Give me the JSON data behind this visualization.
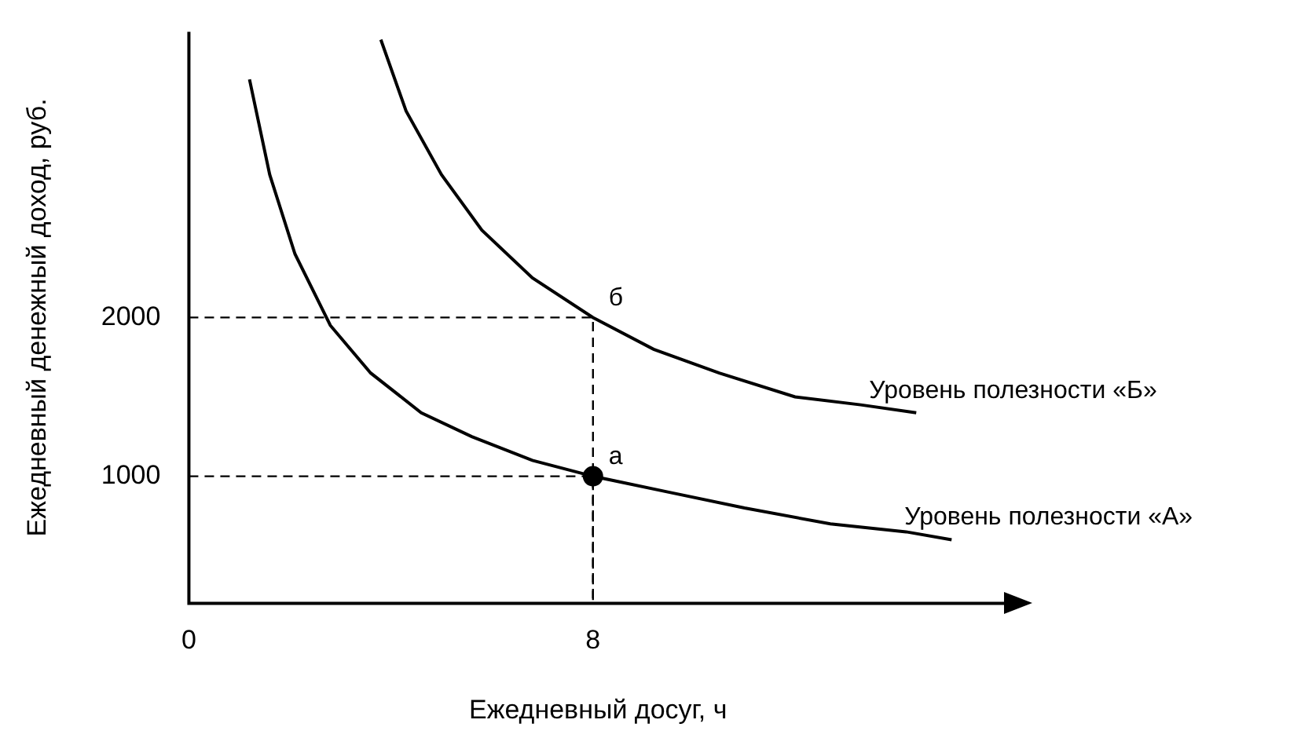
{
  "chart_data": {
    "type": "line",
    "xlabel": "Ежедневный досуг, ч",
    "ylabel": "Ежедневный денежный доход, руб.",
    "xlim": [
      0,
      16.2
    ],
    "ylim": [
      200,
      3800
    ],
    "xticks": [
      0,
      8
    ],
    "yticks": [
      1000,
      2000
    ],
    "grid": false,
    "legend": false,
    "marker": "none",
    "line_style": "solid",
    "series": [
      {
        "name": "Уровень полезности «А»",
        "color": "#000000",
        "x": [
          1.2,
          1.6,
          2.1,
          2.8,
          3.6,
          4.6,
          5.6,
          6.8,
          8,
          9.5,
          11,
          12.7,
          14.2,
          15.1
        ],
        "values": [
          3500,
          2900,
          2400,
          1950,
          1650,
          1400,
          1250,
          1100,
          1000,
          900,
          800,
          700,
          650,
          600
        ]
      },
      {
        "name": "Уровень полезности «Б»",
        "color": "#000000",
        "x": [
          3.8,
          4.3,
          5,
          5.8,
          6.8,
          8,
          9.2,
          10.5,
          12,
          13.3,
          14.4
        ],
        "values": [
          3750,
          3300,
          2900,
          2550,
          2250,
          2000,
          1800,
          1650,
          1500,
          1450,
          1400
        ]
      },
      {
        "color": "#000000",
        "line_style": "dashed",
        "x": [
          0,
          8,
          8
        ],
        "values": [
          2000,
          2000,
          200
        ]
      },
      {
        "color": "#000000",
        "line_style": "dashed",
        "x": [
          0,
          8,
          8
        ],
        "values": [
          1000,
          1000,
          200
        ]
      },
      {
        "type": "scatter",
        "marker": "circle",
        "color": "#000000",
        "x": [
          8
        ],
        "values": [
          1000
        ]
      }
    ],
    "annotations": [
      {
        "text": "а",
        "x": 8,
        "y": 1000
      },
      {
        "text": "б",
        "x": 8,
        "y": 2000
      }
    ]
  }
}
